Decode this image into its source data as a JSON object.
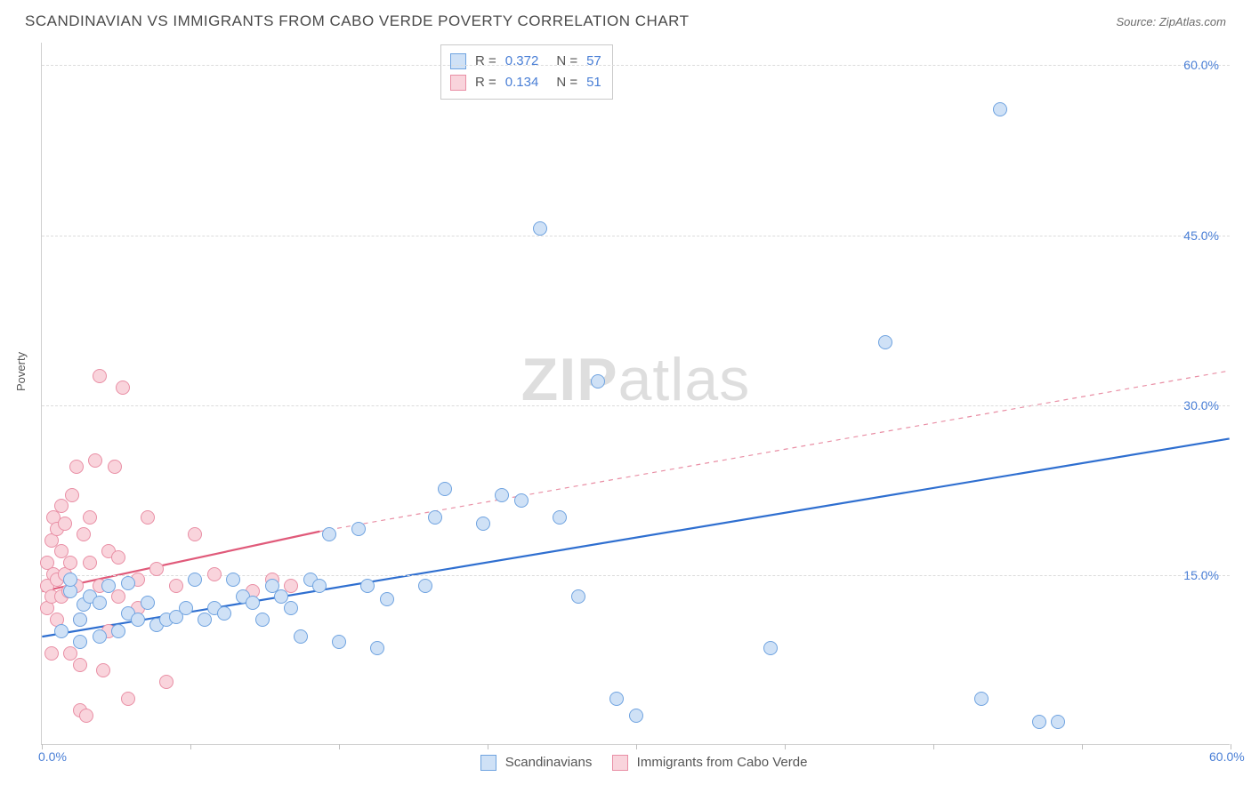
{
  "header": {
    "title": "SCANDINAVIAN VS IMMIGRANTS FROM CABO VERDE POVERTY CORRELATION CHART",
    "source_prefix": "Source: ",
    "source": "ZipAtlas.com"
  },
  "y_axis_label": "Poverty",
  "watermark_a": "ZIP",
  "watermark_b": "atlas",
  "chart": {
    "type": "scatter",
    "background_color": "#ffffff",
    "grid_color": "#dcdcdc",
    "border_color": "#cfcfcf",
    "xlim": [
      0,
      62
    ],
    "ylim": [
      0,
      62
    ],
    "x_ticks": [
      0,
      7.75,
      15.5,
      23.25,
      31,
      38.75,
      46.5,
      54.25,
      62
    ],
    "x_tick_labels": {
      "0": "0.0%",
      "62": "60.0%"
    },
    "y_ticks": [
      15,
      30,
      45,
      60
    ],
    "y_tick_labels": {
      "15": "15.0%",
      "30": "30.0%",
      "45": "45.0%",
      "60": "60.0%"
    },
    "marker_radius": 8,
    "marker_border_width": 1.2,
    "series": [
      {
        "name": "Scandinavians",
        "color_fill": "#cfe1f6",
        "color_stroke": "#6fa3e0",
        "line_color": "#2f6fd0",
        "line_width": 2.2,
        "line_dash": "none",
        "R": "0.372",
        "N": "57",
        "trend": {
          "x1": 0,
          "y1": 9.5,
          "x2": 62,
          "y2": 27
        },
        "points": [
          [
            1,
            10
          ],
          [
            1.5,
            13.5
          ],
          [
            1.5,
            14.5
          ],
          [
            2,
            9
          ],
          [
            2,
            11
          ],
          [
            2.2,
            12.3
          ],
          [
            2.5,
            13
          ],
          [
            3,
            12.5
          ],
          [
            3,
            9.5
          ],
          [
            3.5,
            14
          ],
          [
            4,
            10
          ],
          [
            4.5,
            11.5
          ],
          [
            4.5,
            14.2
          ],
          [
            5,
            11
          ],
          [
            5.5,
            12.5
          ],
          [
            6,
            10.5
          ],
          [
            6.5,
            11
          ],
          [
            7,
            11.2
          ],
          [
            7.5,
            12
          ],
          [
            8,
            14.5
          ],
          [
            8.5,
            11
          ],
          [
            9,
            12
          ],
          [
            9.5,
            11.5
          ],
          [
            10,
            14.5
          ],
          [
            10.5,
            13
          ],
          [
            11,
            12.5
          ],
          [
            11.5,
            11
          ],
          [
            12,
            14
          ],
          [
            12.5,
            13
          ],
          [
            13,
            12
          ],
          [
            13.5,
            9.5
          ],
          [
            14,
            14.5
          ],
          [
            14.5,
            14
          ],
          [
            15,
            18.5
          ],
          [
            15.5,
            9
          ],
          [
            16.5,
            19
          ],
          [
            17,
            14
          ],
          [
            17.5,
            8.5
          ],
          [
            18,
            12.8
          ],
          [
            20,
            14
          ],
          [
            20.5,
            20
          ],
          [
            21,
            22.5
          ],
          [
            23,
            19.5
          ],
          [
            24,
            22
          ],
          [
            25,
            21.5
          ],
          [
            26,
            45.5
          ],
          [
            27,
            20
          ],
          [
            28,
            13
          ],
          [
            29,
            32
          ],
          [
            30,
            4
          ],
          [
            31,
            2.5
          ],
          [
            38,
            8.5
          ],
          [
            44,
            35.5
          ],
          [
            49,
            4
          ],
          [
            50,
            56
          ],
          [
            52,
            2
          ],
          [
            53,
            2
          ]
        ]
      },
      {
        "name": "Immigrants from Cabo Verde",
        "color_fill": "#f9d4dc",
        "color_stroke": "#e98fa5",
        "line_color": "#e05a7a",
        "line_width": 2.2,
        "line_dash": "none",
        "extrap_color": "#e98fa5",
        "extrap_dash": "5,5",
        "R": "0.134",
        "N": "51",
        "trend_solid": {
          "x1": 0,
          "y1": 13.5,
          "x2": 14.5,
          "y2": 18.8
        },
        "trend_dash": {
          "x1": 14.5,
          "y1": 18.8,
          "x2": 62,
          "y2": 33
        },
        "points": [
          [
            0.3,
            12
          ],
          [
            0.3,
            14
          ],
          [
            0.3,
            16
          ],
          [
            0.5,
            8
          ],
          [
            0.5,
            13
          ],
          [
            0.5,
            18
          ],
          [
            0.6,
            20
          ],
          [
            0.6,
            15
          ],
          [
            0.8,
            11
          ],
          [
            0.8,
            19
          ],
          [
            0.8,
            14.5
          ],
          [
            1,
            21
          ],
          [
            1,
            13
          ],
          [
            1,
            17
          ],
          [
            1.2,
            15
          ],
          [
            1.2,
            19.5
          ],
          [
            1.4,
            13.5
          ],
          [
            1.5,
            8
          ],
          [
            1.5,
            16
          ],
          [
            1.6,
            22
          ],
          [
            1.8,
            24.5
          ],
          [
            1.8,
            14
          ],
          [
            2,
            3
          ],
          [
            2,
            7
          ],
          [
            2,
            11
          ],
          [
            2.2,
            18.5
          ],
          [
            2.3,
            2.5
          ],
          [
            2.5,
            16
          ],
          [
            2.5,
            20
          ],
          [
            2.8,
            25
          ],
          [
            3,
            32.5
          ],
          [
            3,
            14
          ],
          [
            3.2,
            6.5
          ],
          [
            3.5,
            17
          ],
          [
            3.5,
            10
          ],
          [
            3.8,
            24.5
          ],
          [
            4,
            13
          ],
          [
            4,
            16.5
          ],
          [
            4.2,
            31.5
          ],
          [
            4.5,
            4
          ],
          [
            5,
            14.5
          ],
          [
            5,
            12
          ],
          [
            5.5,
            20
          ],
          [
            6,
            15.5
          ],
          [
            6.5,
            5.5
          ],
          [
            7,
            14
          ],
          [
            8,
            18.5
          ],
          [
            9,
            15
          ],
          [
            11,
            13.5
          ],
          [
            12,
            14.5
          ],
          [
            13,
            14
          ]
        ]
      }
    ]
  },
  "legend": {
    "stat_r_label": "R =",
    "stat_n_label": "N =",
    "series1_label": "Scandinavians",
    "series2_label": "Immigrants from Cabo Verde"
  }
}
